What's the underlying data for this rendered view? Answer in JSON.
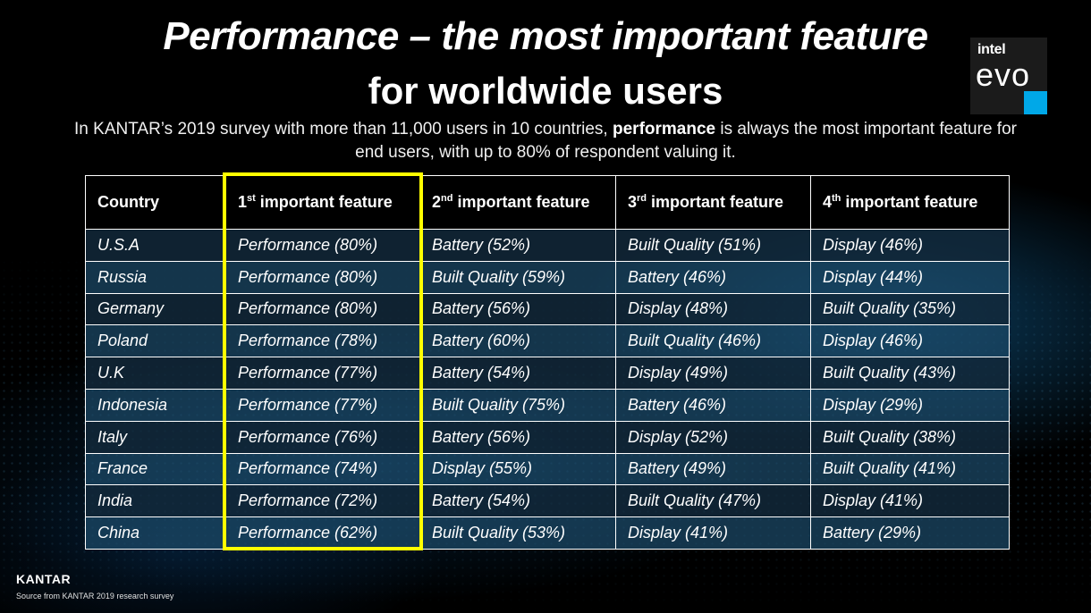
{
  "title": {
    "line1": "Performance – the most important feature",
    "line2": "for worldwide users"
  },
  "subtitle": {
    "before": "In KANTAR’s 2019 survey with more than 11,000 users  in 10 countries, ",
    "bold": "performance",
    "after": " is always the most important feature for end users, with up to 80% of respondent valuing it."
  },
  "logo": {
    "brand": "intel",
    "product": "evo"
  },
  "table": {
    "headers": [
      {
        "pre": "Country",
        "sup": "",
        "post": ""
      },
      {
        "pre": "1",
        "sup": "st",
        "post": " important feature"
      },
      {
        "pre": "2",
        "sup": "nd",
        "post": " important feature"
      },
      {
        "pre": "3",
        "sup": "rd",
        "post": " important feature"
      },
      {
        "pre": "4",
        "sup": "th",
        "post": " important feature"
      }
    ],
    "rows": [
      [
        "U.S.A",
        "Performance (80%)",
        "Battery (52%)",
        "Built Quality (51%)",
        "Display (46%)"
      ],
      [
        "Russia",
        "Performance (80%)",
        "Built Quality (59%)",
        "Battery (46%)",
        "Display (44%)"
      ],
      [
        "Germany",
        "Performance (80%)",
        "Battery (56%)",
        "Display (48%)",
        "Built Quality (35%)"
      ],
      [
        "Poland",
        "Performance (78%)",
        "Battery (60%)",
        "Built Quality (46%)",
        "Display (46%)"
      ],
      [
        "U.K",
        "Performance (77%)",
        "Battery (54%)",
        "Display (49%)",
        "Built Quality (43%)"
      ],
      [
        "Indonesia",
        "Performance (77%)",
        "Built Quality (75%)",
        "Battery (46%)",
        "Display (29%)"
      ],
      [
        "Italy",
        "Performance (76%)",
        "Battery (56%)",
        "Display (52%)",
        "Built Quality (38%)"
      ],
      [
        "France",
        "Performance (74%)",
        "Display (55%)",
        "Battery (49%)",
        "Built Quality (41%)"
      ],
      [
        "India",
        "Performance (72%)",
        "Battery (54%)",
        "Built Quality (47%)",
        "Display (41%)"
      ],
      [
        "China",
        "Performance (62%)",
        "Built Quality (53%)",
        "Display (41%)",
        "Battery (29%)"
      ]
    ]
  },
  "footer": {
    "kantar": "KANTAR",
    "source": "Source from KANTAR 2019 research survey"
  },
  "colors": {
    "highlight": "#ffff00",
    "row_dark": "#122a3c",
    "row_light": "#1c4a68",
    "logo_accent": "#00a8e8"
  }
}
